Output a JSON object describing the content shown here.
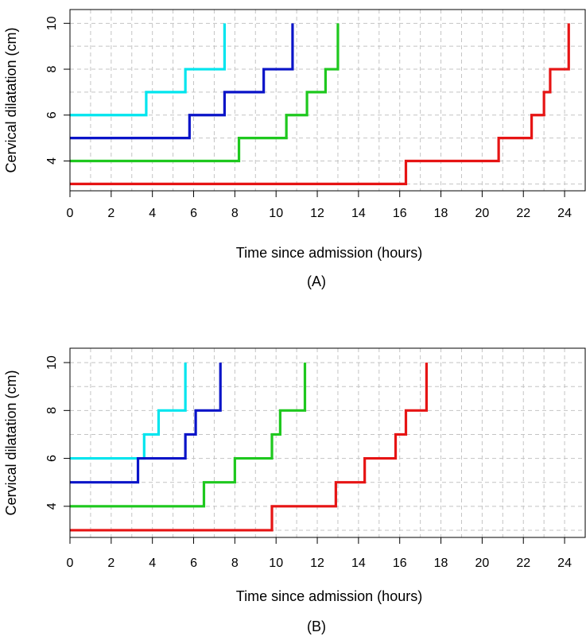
{
  "chart_data": [
    {
      "type": "line",
      "step": true,
      "panel_label": "(A)",
      "xlabel": "Time since admission (hours)",
      "ylabel": "Cervical dilatation (cm)",
      "xlim": [
        0,
        25
      ],
      "ylim": [
        2.7,
        10.6
      ],
      "xticks": [
        0,
        2,
        4,
        6,
        8,
        10,
        12,
        14,
        16,
        18,
        20,
        22,
        24
      ],
      "yticks": [
        4,
        6,
        8,
        10
      ],
      "grid": true,
      "series": [
        {
          "color": "#00e5ee",
          "x": [
            0,
            3.7,
            5.6,
            7.5
          ],
          "y": [
            6,
            7,
            8,
            10
          ]
        },
        {
          "color": "#0a14c8",
          "x": [
            0,
            5.8,
            7.5,
            9.4,
            10.8
          ],
          "y": [
            5,
            6,
            7,
            8,
            10
          ]
        },
        {
          "color": "#1ec81e",
          "x": [
            0,
            8.2,
            10.5,
            11.5,
            12.4,
            13.0
          ],
          "y": [
            4,
            5,
            6,
            7,
            8,
            10
          ]
        },
        {
          "color": "#e61414",
          "x": [
            0,
            16.3,
            20.8,
            22.4,
            23.0,
            23.3,
            24.2
          ],
          "y": [
            3,
            4,
            5,
            6,
            7,
            8,
            10
          ]
        }
      ]
    },
    {
      "type": "line",
      "step": true,
      "panel_label": "(B)",
      "xlabel": "Time since admission (hours)",
      "ylabel": "Cervical dilatation (cm)",
      "xlim": [
        0,
        25
      ],
      "ylim": [
        2.7,
        10.6
      ],
      "xticks": [
        0,
        2,
        4,
        6,
        8,
        10,
        12,
        14,
        16,
        18,
        20,
        22,
        24
      ],
      "yticks": [
        4,
        6,
        8,
        10
      ],
      "grid": true,
      "series": [
        {
          "color": "#00e5ee",
          "x": [
            0,
            3.6,
            4.3,
            5.6
          ],
          "y": [
            6,
            7,
            8,
            10
          ]
        },
        {
          "color": "#0a14c8",
          "x": [
            0,
            3.3,
            5.6,
            6.1,
            7.3
          ],
          "y": [
            5,
            6,
            7,
            8,
            10
          ]
        },
        {
          "color": "#1ec81e",
          "x": [
            0,
            6.5,
            8.0,
            9.8,
            10.2,
            11.4
          ],
          "y": [
            4,
            5,
            6,
            7,
            8,
            10
          ]
        },
        {
          "color": "#e61414",
          "x": [
            0,
            9.8,
            12.9,
            14.3,
            15.8,
            16.3,
            17.3
          ],
          "y": [
            3,
            4,
            5,
            6,
            7,
            8,
            10
          ]
        }
      ]
    }
  ]
}
